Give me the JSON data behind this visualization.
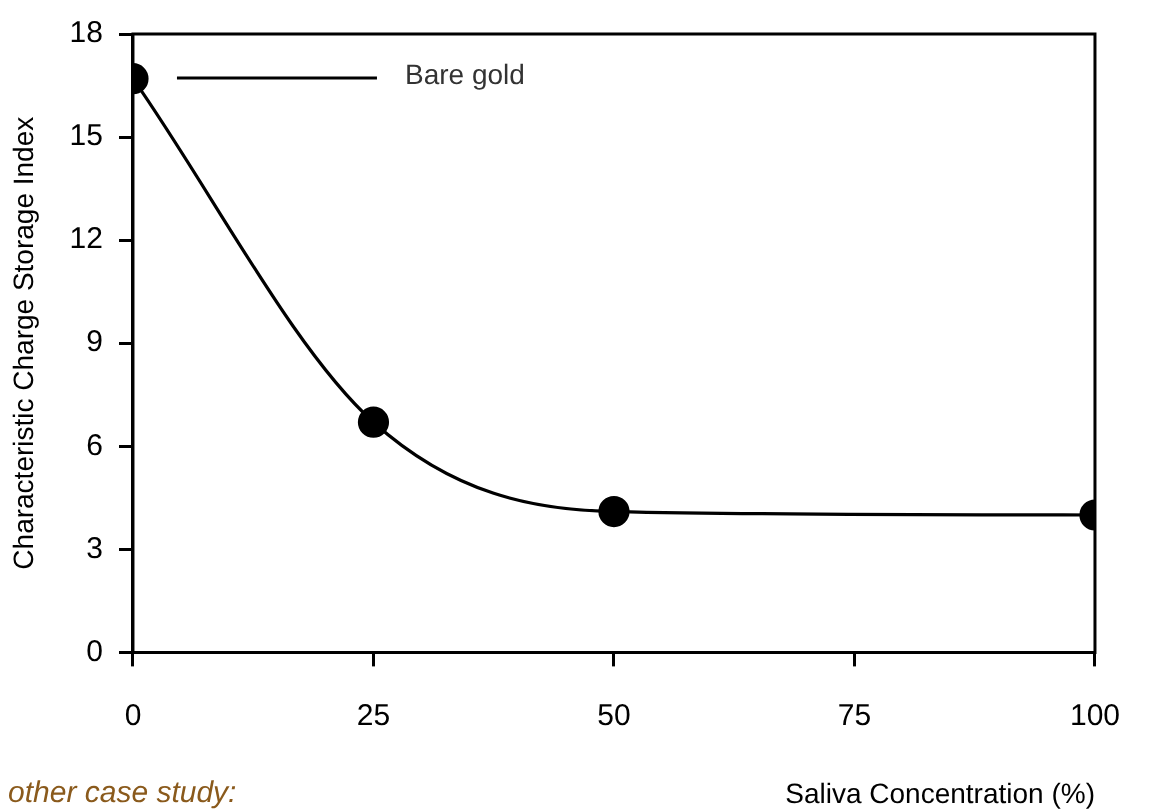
{
  "chart_data": {
    "type": "line",
    "xlabel": "Saliva Concentration (%)",
    "ylabel": "Characteristic Charge Storage Index",
    "x": [
      0,
      25,
      50,
      100
    ],
    "series": [
      {
        "name": "Bare gold",
        "color": "#000000",
        "values": [
          16.7,
          6.7,
          4.1,
          4.0
        ]
      }
    ],
    "xlim": [
      0,
      100
    ],
    "xticks": [
      0,
      25,
      50,
      75,
      100
    ],
    "ylim": [
      0,
      18
    ],
    "yticks": [
      0,
      3,
      6,
      9,
      12,
      15,
      18
    ],
    "grid": false,
    "legend": "top left",
    "marker": "circle",
    "line_style": "solid",
    "annotations": [
      "other case study:"
    ]
  }
}
